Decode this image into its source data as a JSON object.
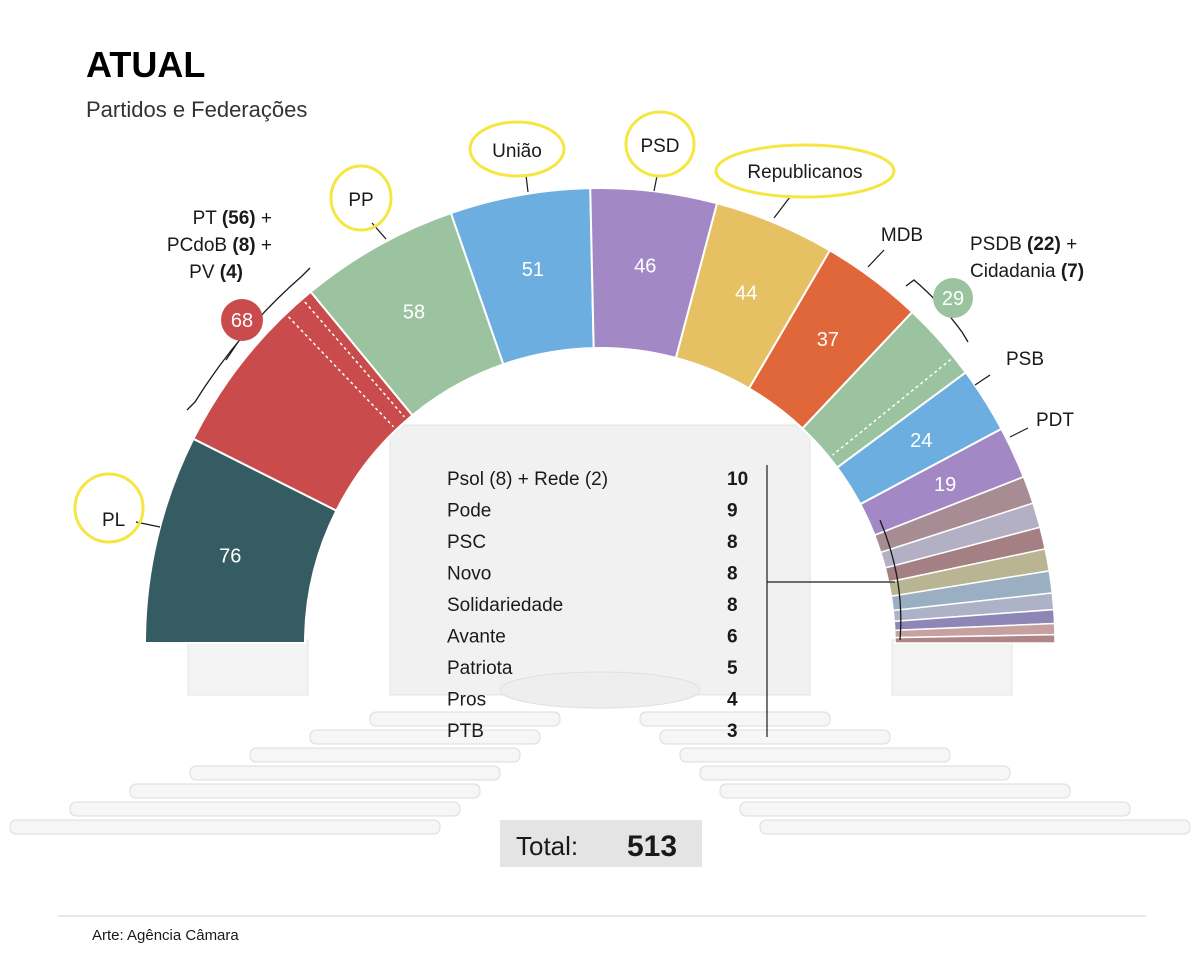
{
  "header": {
    "title": "ATUAL",
    "subtitle": "Partidos e Federações"
  },
  "chart_data": {
    "type": "parliament-semicircle",
    "title": "ATUAL",
    "subtitle": "Partidos e Federações",
    "main_parties": [
      {
        "name": "PL",
        "seats": 76,
        "color": "#355c63"
      },
      {
        "name": "PT + PCdoB + PV",
        "seats": 68,
        "color": "#c94b4b",
        "shown_value": "68",
        "parts": [
          56,
          8,
          4
        ]
      },
      {
        "name": "PP",
        "seats": 58,
        "color": "#9cc3a0"
      },
      {
        "name": "União",
        "seats": 51,
        "color": "#6daee0"
      },
      {
        "name": "PSD",
        "seats": 46,
        "color": "#a288c5"
      },
      {
        "name": "Republicanos",
        "seats": 44,
        "color": "#e6c163"
      },
      {
        "name": "MDB",
        "seats": 37,
        "color": "#e0673a"
      },
      {
        "name": "PSDB + Cidadania",
        "seats": 29,
        "color": "#9cc3a0",
        "shown_value": "29",
        "parts": [
          22,
          7
        ]
      },
      {
        "name": "PSB",
        "seats": 24,
        "color": "#6daee0"
      },
      {
        "name": "PDT",
        "seats": 19,
        "color": "#a288c5"
      }
    ],
    "small_parties": [
      {
        "name": "Psol (8) + Rede (2)",
        "seats": 10,
        "color": "#a88c93"
      },
      {
        "name": "Pode",
        "seats": 9,
        "color": "#b3b0c3"
      },
      {
        "name": "PSC",
        "seats": 8,
        "color": "#a47f83"
      },
      {
        "name": "Novo",
        "seats": 8,
        "color": "#b9b593"
      },
      {
        "name": "Solidariedade",
        "seats": 8,
        "color": "#9ab0c2"
      },
      {
        "name": "Avante",
        "seats": 6,
        "color": "#aeb2c6"
      },
      {
        "name": "Patriota",
        "seats": 5,
        "color": "#8d86b6"
      },
      {
        "name": "Pros",
        "seats": 4,
        "color": "#c7a0a0"
      },
      {
        "name": "PTB",
        "seats": 3,
        "color": "#b08588"
      }
    ],
    "total": {
      "label": "Total:",
      "value": 513
    }
  },
  "labels": {
    "pl": "PL",
    "pt_line1_a": "PT ",
    "pt_line1_b": "(56)",
    "pt_line1_c": " +",
    "pt_line2_a": "PCdoB ",
    "pt_line2_b": "(8)",
    "pt_line2_c": " +",
    "pt_line3_a": "PV ",
    "pt_line3_b": "(4)",
    "pp": "PP",
    "uniao": "União",
    "psd": "PSD",
    "republicanos": "Republicanos",
    "mdb": "MDB",
    "psdb_line1_a": "PSDB ",
    "psdb_line1_b": "(22)",
    "psdb_line1_c": " +",
    "psdb_line2_a": "Cidadania ",
    "psdb_line2_b": "(7)",
    "psb": "PSB",
    "pdt": "PDT",
    "badge_pt": "68",
    "badge_psdb": "29"
  },
  "colors": {
    "highlight": "#f5e642",
    "badge_red": "#c94b4b",
    "badge_green": "#9cc3a0"
  },
  "credit": "Arte: Agência Câmara"
}
